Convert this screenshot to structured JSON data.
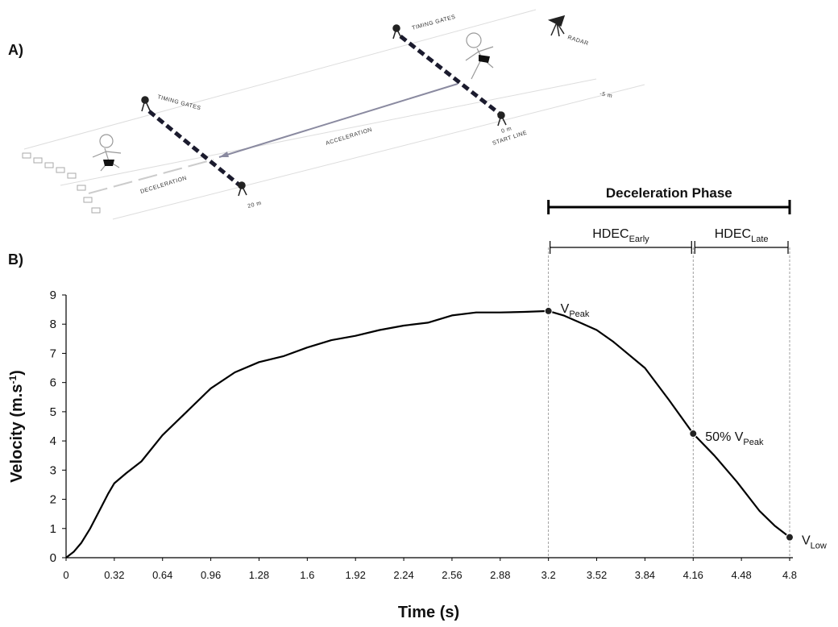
{
  "panel_a": {
    "label": "A)",
    "timing_gates_left": "TIMING GATES",
    "timing_gates_right": "TIMING GATES",
    "radar": "RADAR",
    "minus_5m": "-5 m",
    "zero_m": "0 m",
    "start_line": "START LINE",
    "acceleration": "ACCELERATION",
    "deceleration": "DECELERATION",
    "twenty_m": "20 m"
  },
  "chart_data": {
    "type": "line",
    "panel_label": "B)",
    "color": "#000000",
    "xlabel": "Time (s)",
    "ylabel": {
      "text": "Velocity (m.s",
      "sup": "-1",
      "suffix": ")"
    },
    "x": [
      0,
      0.05,
      0.1,
      0.16,
      0.22,
      0.28,
      0.32,
      0.4,
      0.5,
      0.64,
      0.8,
      0.96,
      1.12,
      1.28,
      1.44,
      1.6,
      1.76,
      1.92,
      2.08,
      2.24,
      2.4,
      2.56,
      2.72,
      2.88,
      3.04,
      3.2,
      3.3,
      3.41,
      3.52,
      3.63,
      3.84,
      4.0,
      4.16,
      4.3,
      4.45,
      4.6,
      4.7,
      4.8
    ],
    "values": [
      0,
      0.2,
      0.5,
      1.0,
      1.6,
      2.2,
      2.55,
      2.9,
      3.3,
      4.2,
      5.0,
      5.8,
      6.35,
      6.7,
      6.9,
      7.2,
      7.45,
      7.6,
      7.8,
      7.95,
      8.05,
      8.3,
      8.4,
      8.4,
      8.42,
      8.45,
      8.3,
      8.05,
      7.8,
      7.4,
      6.5,
      5.4,
      4.25,
      3.5,
      2.6,
      1.6,
      1.1,
      0.7
    ],
    "xlim": [
      0,
      4.8
    ],
    "ylim": [
      0,
      9
    ],
    "xticks": [
      0,
      0.32,
      0.64,
      0.96,
      1.28,
      1.6,
      1.92,
      2.24,
      2.56,
      2.88,
      3.2,
      3.52,
      3.84,
      4.16,
      4.48,
      4.8
    ],
    "yticks": [
      0,
      1,
      2,
      3,
      4,
      5,
      6,
      7,
      8,
      9
    ],
    "annotations": [
      {
        "text": "V",
        "sub": "Peak",
        "x": 3.2,
        "y": 8.45
      },
      {
        "text": "50% V",
        "sub": "Peak",
        "x": 4.16,
        "y": 4.25
      },
      {
        "text": "V",
        "sub": "Low",
        "x": 4.8,
        "y": 0.7
      }
    ],
    "phases": [
      {
        "text": "Deceleration Phase",
        "start": 3.2,
        "end": 4.8
      },
      {
        "text": "HDEC",
        "sub": "Early",
        "start": 3.2,
        "end": 4.16
      },
      {
        "text": "HDEC",
        "sub": "Late",
        "start": 4.16,
        "end": 4.8
      }
    ]
  }
}
